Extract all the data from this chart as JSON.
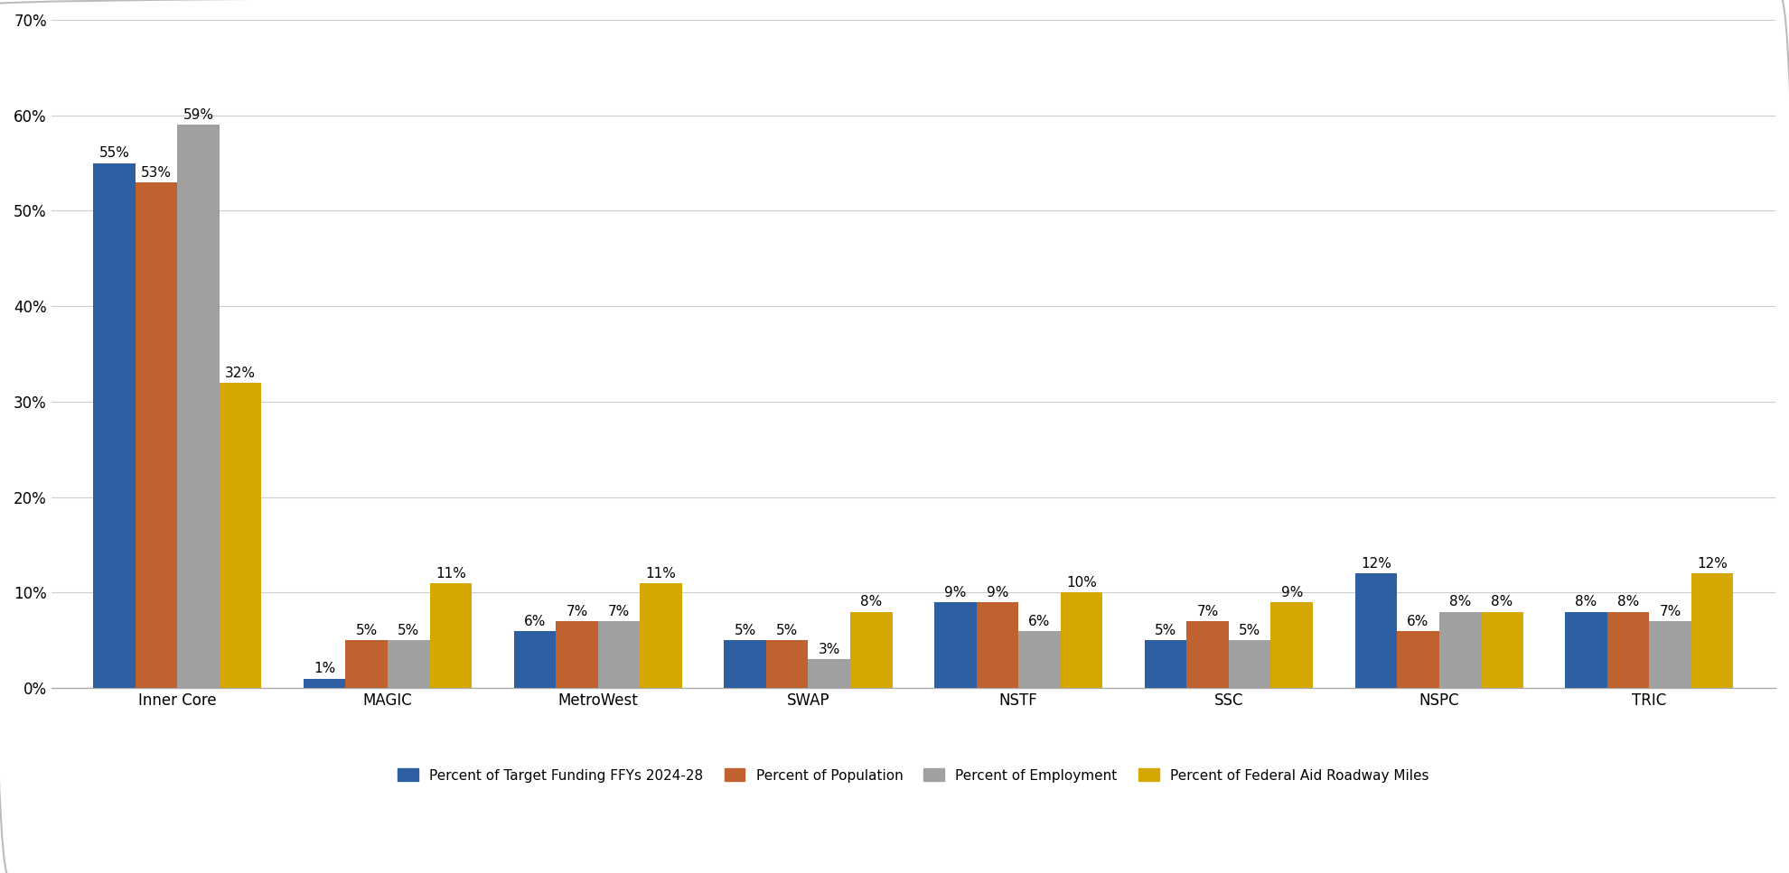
{
  "categories": [
    "Inner Core",
    "MAGIC",
    "MetroWest",
    "SWAP",
    "NSTF",
    "SSC",
    "NSPC",
    "TRIC"
  ],
  "series": {
    "Percent of Target Funding FFYs 2024-28": [
      55,
      1,
      6,
      5,
      9,
      5,
      12,
      8
    ],
    "Percent of Population": [
      53,
      5,
      7,
      5,
      9,
      7,
      6,
      8
    ],
    "Percent of Employment": [
      59,
      5,
      7,
      3,
      6,
      5,
      8,
      7
    ],
    "Percent of Federal Aid Roadway Miles": [
      32,
      11,
      11,
      8,
      10,
      9,
      8,
      12
    ]
  },
  "series_order": [
    "Percent of Target Funding FFYs 2024-28",
    "Percent of Population",
    "Percent of Employment",
    "Percent of Federal Aid Roadway Miles"
  ],
  "colors": {
    "Percent of Target Funding FFYs 2024-28": "#2E5FA3",
    "Percent of Population": "#C0622F",
    "Percent of Employment": "#A0A0A0",
    "Percent of Federal Aid Roadway Miles": "#D4A800"
  },
  "ylim": [
    0,
    70
  ],
  "yticks": [
    0,
    10,
    20,
    30,
    40,
    50,
    60,
    70
  ],
  "ytick_labels": [
    "0%",
    "10%",
    "20%",
    "30%",
    "40%",
    "50%",
    "60%",
    "70%"
  ],
  "bar_width": 0.2,
  "background_color": "#FFFFFF",
  "grid_color": "#CCCCCC",
  "font_size_labels": 11,
  "font_size_ticks": 12,
  "font_size_legend": 11,
  "legend_ncol": 4
}
